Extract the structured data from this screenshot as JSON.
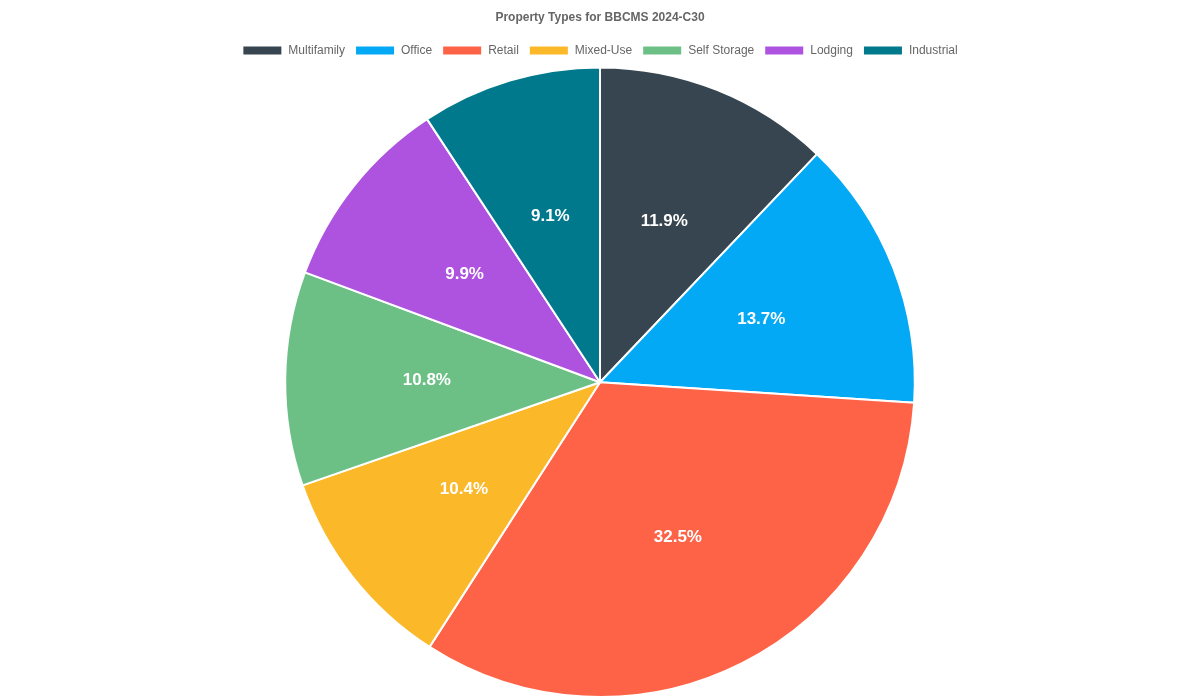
{
  "chart_data": {
    "type": "pie",
    "title": "Property Types for BBCMS 2024-C30",
    "categories": [
      "Multifamily",
      "Office",
      "Retail",
      "Mixed-Use",
      "Self Storage",
      "Lodging",
      "Industrial"
    ],
    "values": [
      11.9,
      13.7,
      32.5,
      10.4,
      10.8,
      9.9,
      9.1
    ],
    "value_labels": [
      "11.9%",
      "13.7%",
      "32.5%",
      "10.4%",
      "10.8%",
      "9.9%",
      "9.1%"
    ],
    "colors": [
      "#36454f",
      "#03a9f4",
      "#ff6347",
      "#fbb829",
      "#6cc086",
      "#ad53e0",
      "#00798c"
    ],
    "legend": "top",
    "data_labels": true
  }
}
